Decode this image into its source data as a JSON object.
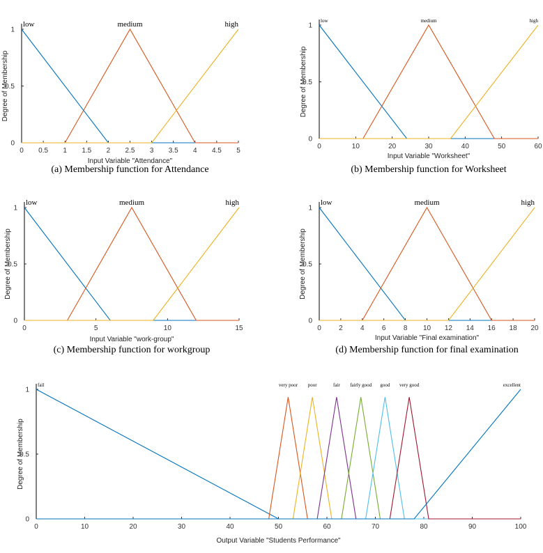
{
  "colors": {
    "blue": "#0072BD",
    "orange": "#D95319",
    "yellow": "#EDB120",
    "purple": "#7E2F8E",
    "green": "#77AC30",
    "cyan": "#4DBEEE",
    "red": "#A2142F"
  },
  "chart_data": [
    {
      "type": "line",
      "id": "attendance",
      "title": "",
      "xlabel": "Input Variable \"Attendance\"",
      "ylabel": "Degree of Membership",
      "xlim": [
        0,
        5
      ],
      "ylim": [
        0,
        1
      ],
      "xticks": [
        0,
        0.5,
        1,
        1.5,
        2,
        2.5,
        3,
        3.5,
        4,
        4.5,
        5
      ],
      "xtick_labels": [
        "0",
        "0.5",
        "1",
        "1.5",
        "2",
        "2.5",
        "3",
        "3.5",
        "4",
        "4.5",
        "5"
      ],
      "yticks": [
        0,
        0.5,
        1
      ],
      "ytick_labels": [
        "0",
        "0.5",
        "1"
      ],
      "caption": "(a) Membership function for Attendance",
      "series": [
        {
          "name": "low",
          "color": "#0072BD",
          "x": [
            0,
            2,
            5
          ],
          "y": [
            1,
            0,
            0
          ],
          "label_at": [
            0,
            1
          ]
        },
        {
          "name": "medium",
          "color": "#D95319",
          "x": [
            0,
            1,
            2.5,
            4,
            5
          ],
          "y": [
            0,
            0,
            1,
            0,
            0
          ],
          "label_at": [
            2.5,
            1
          ]
        },
        {
          "name": "high",
          "color": "#EDB120",
          "x": [
            0,
            3,
            5
          ],
          "y": [
            0,
            0,
            1
          ],
          "label_at": [
            5,
            1
          ]
        }
      ]
    },
    {
      "type": "line",
      "id": "worksheet",
      "title": "",
      "xlabel": "Input Variable \"Worksheet\"",
      "ylabel": "Degree of Membership",
      "xlim": [
        0,
        60
      ],
      "ylim": [
        0,
        1
      ],
      "xticks": [
        0,
        10,
        20,
        30,
        40,
        50,
        60
      ],
      "xtick_labels": [
        "0",
        "10",
        "20",
        "30",
        "40",
        "50",
        "60"
      ],
      "yticks": [
        0,
        0.5,
        1
      ],
      "ytick_labels": [
        "0",
        "0.5",
        "1"
      ],
      "caption": "(b) Membership function for Worksheet",
      "series": [
        {
          "name": "low",
          "color": "#0072BD",
          "x": [
            0,
            24,
            60
          ],
          "y": [
            1,
            0,
            0
          ],
          "label_at": [
            0,
            1
          ]
        },
        {
          "name": "medium",
          "color": "#D95319",
          "x": [
            0,
            12,
            30,
            48,
            60
          ],
          "y": [
            0,
            0,
            1,
            0,
            0
          ],
          "label_at": [
            30,
            1
          ]
        },
        {
          "name": "high",
          "color": "#EDB120",
          "x": [
            0,
            36,
            60
          ],
          "y": [
            0,
            0,
            1
          ],
          "label_at": [
            60,
            1
          ]
        }
      ]
    },
    {
      "type": "line",
      "id": "workgroup",
      "title": "",
      "xlabel": "Input Variable \"work-group\"",
      "ylabel": "Degree of Membership",
      "xlim": [
        0,
        15
      ],
      "ylim": [
        0,
        1
      ],
      "xticks": [
        0,
        5,
        10,
        15
      ],
      "xtick_labels": [
        "0",
        "5",
        "10",
        "15"
      ],
      "yticks": [
        0,
        0.5,
        1
      ],
      "ytick_labels": [
        "0",
        "0.5",
        "1"
      ],
      "caption": "(c) Membership function for workgroup",
      "series": [
        {
          "name": "low",
          "color": "#0072BD",
          "x": [
            0,
            6,
            15
          ],
          "y": [
            1,
            0,
            0
          ],
          "label_at": [
            0,
            1
          ]
        },
        {
          "name": "medium",
          "color": "#D95319",
          "x": [
            0,
            3,
            7.5,
            12,
            15
          ],
          "y": [
            0,
            0,
            1,
            0,
            0
          ],
          "label_at": [
            7.5,
            1
          ]
        },
        {
          "name": "high",
          "color": "#EDB120",
          "x": [
            0,
            9,
            15
          ],
          "y": [
            0,
            0,
            1
          ],
          "label_at": [
            15,
            1
          ]
        }
      ]
    },
    {
      "type": "line",
      "id": "final-exam",
      "title": "",
      "xlabel": "Input Variable \"Final examination\"",
      "ylabel": "Degree of Membership",
      "xlim": [
        0,
        20
      ],
      "ylim": [
        0,
        1
      ],
      "xticks": [
        0,
        2,
        4,
        6,
        8,
        10,
        12,
        14,
        16,
        18,
        20
      ],
      "xtick_labels": [
        "0",
        "2",
        "4",
        "6",
        "8",
        "10",
        "12",
        "14",
        "16",
        "18",
        "20"
      ],
      "yticks": [
        0,
        0.5,
        1
      ],
      "ytick_labels": [
        "0",
        "0.5",
        "1"
      ],
      "caption": "(d) Membership function for final examination",
      "series": [
        {
          "name": "low",
          "color": "#0072BD",
          "x": [
            0,
            8,
            20
          ],
          "y": [
            1,
            0,
            0
          ],
          "label_at": [
            0,
            1
          ]
        },
        {
          "name": "medium",
          "color": "#D95319",
          "x": [
            0,
            4,
            10,
            16,
            20
          ],
          "y": [
            0,
            0,
            1,
            0,
            0
          ],
          "label_at": [
            10,
            1
          ]
        },
        {
          "name": "high",
          "color": "#EDB120",
          "x": [
            0,
            12,
            20
          ],
          "y": [
            0,
            0,
            1
          ],
          "label_at": [
            20,
            1
          ]
        }
      ]
    },
    {
      "type": "line",
      "id": "performance",
      "title": "",
      "xlabel": "Output Variable \"Students Performance\"",
      "ylabel": "Degree of Membership",
      "xlim": [
        0,
        100
      ],
      "ylim": [
        0,
        1
      ],
      "xticks": [
        0,
        10,
        20,
        30,
        40,
        50,
        60,
        70,
        80,
        90,
        100
      ],
      "xtick_labels": [
        "0",
        "10",
        "20",
        "30",
        "40",
        "50",
        "60",
        "70",
        "80",
        "90",
        "100"
      ],
      "yticks": [
        0,
        0.5,
        1
      ],
      "ytick_labels": [
        "0",
        "0.5",
        "1"
      ],
      "caption": "",
      "series": [
        {
          "name": "fail",
          "color": "#0072BD",
          "x": [
            0,
            50,
            100
          ],
          "y": [
            1,
            0,
            0
          ],
          "label_at": [
            0,
            1
          ]
        },
        {
          "name": "very poor",
          "color": "#D95319",
          "x": [
            0,
            48,
            52,
            56,
            100
          ],
          "y": [
            0,
            0,
            0.94,
            0,
            0
          ],
          "label_at": [
            52,
            1
          ]
        },
        {
          "name": "poor",
          "color": "#EDB120",
          "x": [
            0,
            53,
            57,
            61,
            100
          ],
          "y": [
            0,
            0,
            0.94,
            0,
            0
          ],
          "label_at": [
            57,
            1
          ]
        },
        {
          "name": "fair",
          "color": "#7E2F8E",
          "x": [
            0,
            58,
            62,
            66,
            100
          ],
          "y": [
            0,
            0,
            0.94,
            0,
            0
          ],
          "label_at": [
            62,
            1
          ]
        },
        {
          "name": "fairly good",
          "color": "#77AC30",
          "x": [
            0,
            63,
            67,
            71,
            100
          ],
          "y": [
            0,
            0,
            0.94,
            0,
            0
          ],
          "label_at": [
            67,
            1
          ]
        },
        {
          "name": "good",
          "color": "#4DBEEE",
          "x": [
            0,
            68,
            72,
            76,
            100
          ],
          "y": [
            0,
            0,
            0.94,
            0,
            0
          ],
          "label_at": [
            72,
            1
          ]
        },
        {
          "name": "very good",
          "color": "#A2142F",
          "x": [
            0,
            73,
            77,
            81,
            100
          ],
          "y": [
            0,
            0,
            0.94,
            0,
            0
          ],
          "label_at": [
            77,
            1
          ]
        },
        {
          "name": "excellent",
          "color": "#0072BD",
          "x": [
            0,
            78,
            100
          ],
          "y": [
            0,
            0,
            1
          ],
          "label_at": [
            100,
            1
          ]
        }
      ]
    }
  ]
}
